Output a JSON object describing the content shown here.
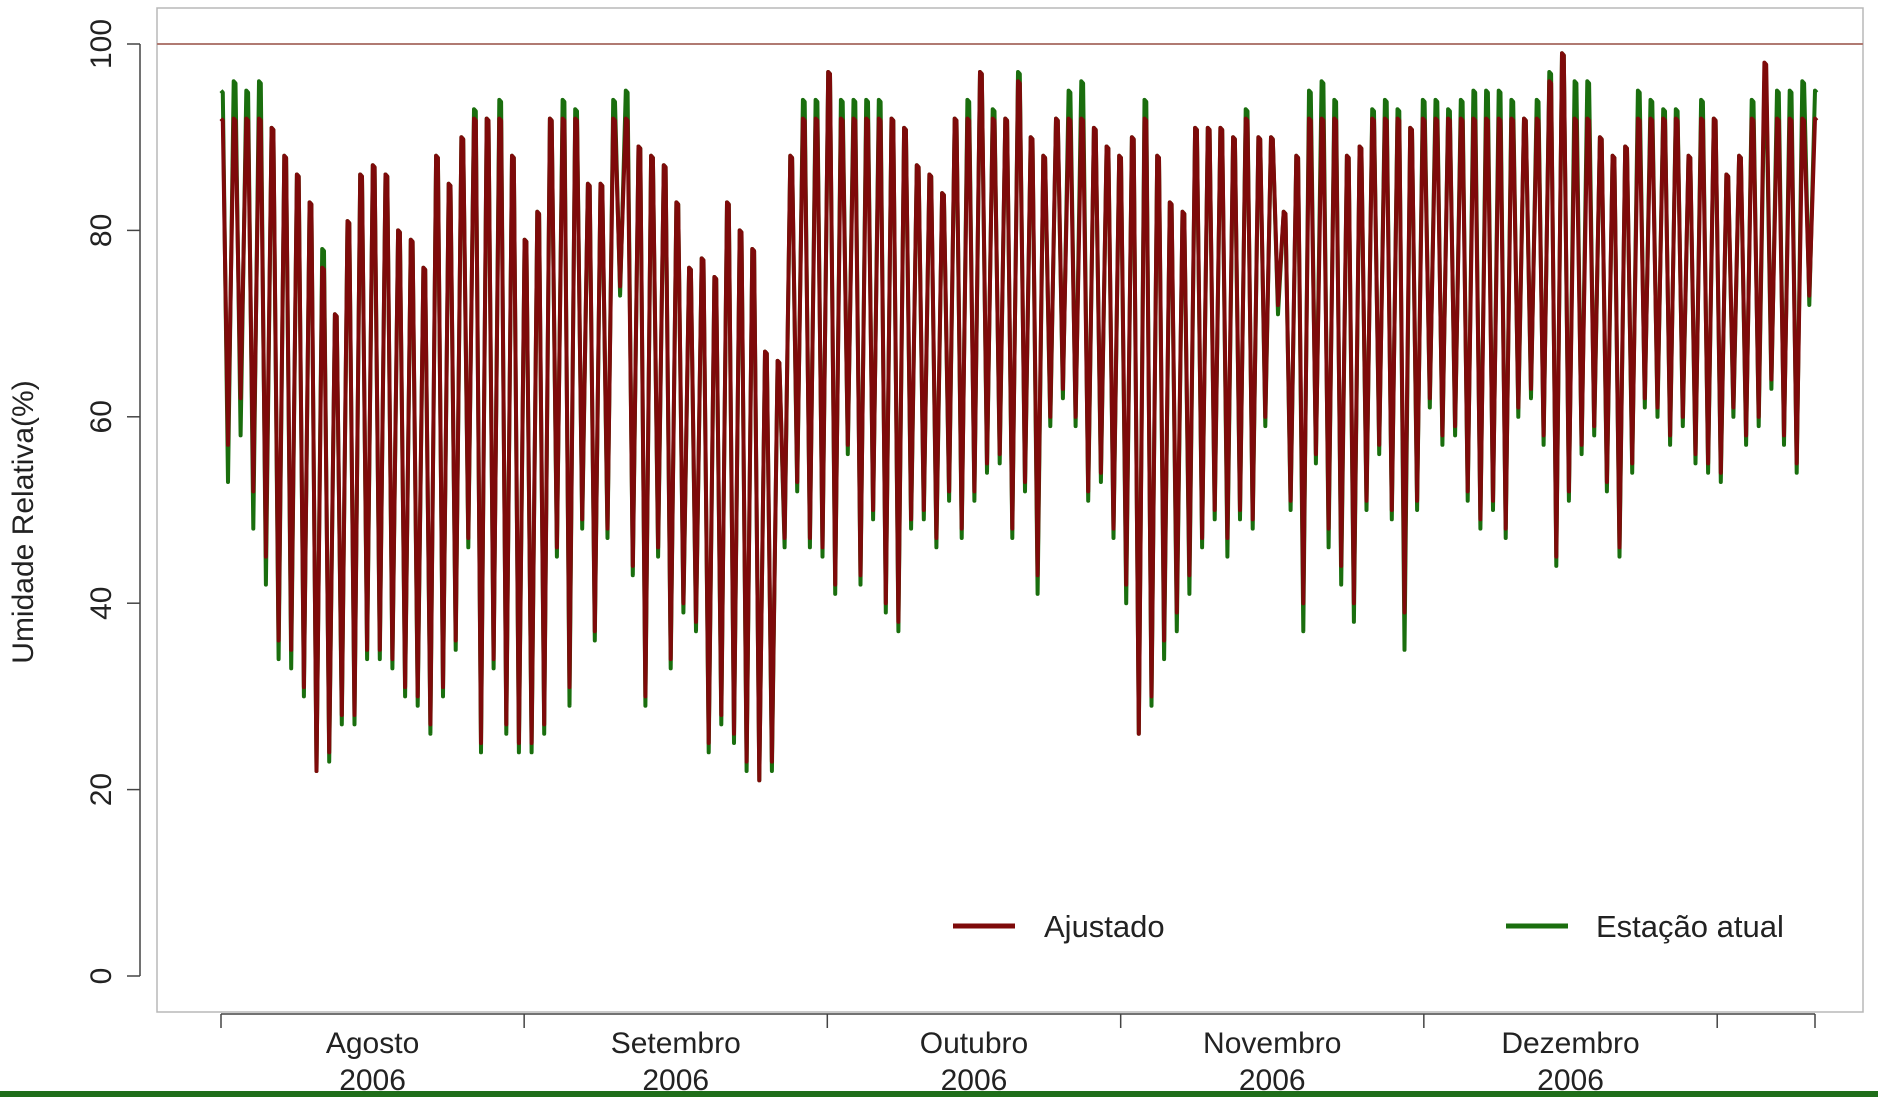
{
  "chart_data": {
    "type": "line",
    "title": "",
    "xlabel": "",
    "ylabel": "Umidade Relativa(%)",
    "ylim": [
      0,
      100
    ],
    "y_ticks": [
      "0",
      "20",
      "40",
      "60",
      "80",
      "100"
    ],
    "reference_line": {
      "y": 100,
      "color": "#b07a72"
    },
    "x_range": [
      "2006-07-21",
      "2006-12-31"
    ],
    "x_tick_boundaries": [
      "2006-07-21",
      "2006-08-21",
      "2006-09-21",
      "2006-10-21",
      "2006-11-21",
      "2006-12-21",
      "2006-12-31"
    ],
    "x_labels": [
      {
        "month": "Agosto",
        "year": "2006",
        "date": "2006-08-05"
      },
      {
        "month": "Setembro",
        "year": "2006",
        "date": "2006-09-05"
      },
      {
        "month": "Outubro",
        "year": "2006",
        "date": "2006-10-05"
      },
      {
        "month": "Novembro",
        "year": "2006",
        "date": "2006-11-05"
      },
      {
        "month": "Dezembro",
        "year": "2006",
        "date": "2006-12-05"
      }
    ],
    "legend": {
      "position": "bottom"
    },
    "series": [
      {
        "name": "Estação atual",
        "color": "#1a6e0e",
        "daily_max": [
          95,
          96,
          95,
          96,
          91,
          88,
          86,
          83,
          78,
          71,
          81,
          86,
          87,
          86,
          80,
          79,
          76,
          88,
          85,
          90,
          93,
          92,
          94,
          88,
          79,
          82,
          92,
          94,
          93,
          85,
          85,
          94,
          95,
          89,
          88,
          87,
          83,
          76,
          77,
          75,
          83,
          80,
          78,
          67,
          66,
          88,
          94,
          94,
          97,
          94,
          94,
          94,
          94,
          92,
          91,
          87,
          86,
          84,
          92,
          94,
          97,
          93,
          92,
          97,
          90,
          88,
          92,
          95,
          96,
          91,
          89,
          88,
          90,
          94,
          88,
          83,
          82,
          91,
          91,
          91,
          90,
          93,
          90,
          90,
          82,
          88,
          95,
          96,
          94,
          88,
          89,
          93,
          94,
          93,
          91,
          94,
          94,
          93,
          94,
          95,
          95,
          95,
          94,
          92,
          94,
          97,
          99,
          96,
          96,
          90,
          88,
          89,
          95,
          94,
          93,
          93,
          88,
          94,
          92,
          86,
          88,
          94,
          96,
          95,
          95,
          96,
          95,
          95,
          94,
          93,
          92,
          90,
          93,
          94,
          93,
          93
        ],
        "daily_min": [
          53,
          58,
          48,
          42,
          34,
          33,
          30,
          22,
          23,
          27,
          27,
          34,
          34,
          33,
          30,
          29,
          26,
          30,
          35,
          46,
          24,
          33,
          26,
          24,
          24,
          26,
          45,
          29,
          48,
          36,
          47,
          73,
          43,
          29,
          45,
          33,
          39,
          37,
          24,
          27,
          25,
          22,
          21,
          22,
          46,
          52,
          46,
          45,
          41,
          56,
          42,
          49,
          39,
          37,
          48,
          49,
          46,
          51,
          47,
          51,
          54,
          55,
          47,
          52,
          41,
          59,
          62,
          59,
          51,
          53,
          47,
          40,
          26,
          29,
          34,
          37,
          41,
          46,
          49,
          45,
          49,
          48,
          59,
          71,
          50,
          37,
          55,
          46,
          42,
          38,
          50,
          56,
          49,
          35,
          50,
          61,
          57,
          58,
          51,
          48,
          50,
          47,
          60,
          62,
          57,
          44,
          51,
          56,
          58,
          52,
          45,
          54,
          61,
          60,
          57,
          59,
          55,
          54,
          53,
          60,
          57,
          59,
          63,
          57,
          54,
          72,
          81
        ]
      },
      {
        "name": "Ajustado",
        "color": "#7e0a0a",
        "daily_max": [
          92,
          92,
          92,
          92,
          91,
          88,
          86,
          83,
          76,
          71,
          81,
          86,
          87,
          86,
          80,
          79,
          76,
          88,
          85,
          90,
          92,
          92,
          92,
          88,
          79,
          82,
          92,
          92,
          92,
          85,
          85,
          92,
          92,
          89,
          88,
          87,
          83,
          76,
          77,
          75,
          83,
          80,
          78,
          67,
          66,
          88,
          92,
          92,
          97,
          92,
          92,
          92,
          92,
          92,
          91,
          87,
          86,
          84,
          92,
          92,
          97,
          92,
          92,
          96,
          90,
          88,
          92,
          92,
          92,
          91,
          89,
          88,
          90,
          92,
          88,
          83,
          82,
          91,
          91,
          91,
          90,
          92,
          90,
          90,
          82,
          88,
          92,
          92,
          92,
          88,
          89,
          92,
          92,
          92,
          91,
          92,
          92,
          92,
          92,
          92,
          92,
          92,
          92,
          92,
          92,
          96,
          99,
          92,
          92,
          90,
          88,
          89,
          92,
          92,
          92,
          92,
          88,
          92,
          92,
          86,
          88,
          92,
          98,
          92,
          92,
          92,
          92,
          92,
          92,
          92,
          92,
          90,
          92,
          92,
          92,
          92
        ],
        "daily_min": [
          57,
          62,
          52,
          45,
          36,
          35,
          31,
          22,
          24,
          28,
          28,
          35,
          35,
          34,
          31,
          30,
          27,
          31,
          36,
          47,
          25,
          34,
          27,
          25,
          25,
          27,
          46,
          31,
          49,
          37,
          48,
          74,
          44,
          30,
          46,
          34,
          40,
          38,
          25,
          28,
          26,
          23,
          21,
          23,
          47,
          53,
          47,
          46,
          42,
          57,
          43,
          50,
          40,
          38,
          49,
          50,
          47,
          52,
          48,
          52,
          55,
          56,
          48,
          53,
          43,
          60,
          63,
          60,
          52,
          54,
          48,
          42,
          26,
          30,
          36,
          39,
          43,
          47,
          50,
          47,
          50,
          49,
          60,
          72,
          51,
          40,
          56,
          48,
          44,
          40,
          51,
          57,
          50,
          39,
          51,
          62,
          58,
          59,
          52,
          49,
          51,
          48,
          61,
          63,
          58,
          45,
          52,
          57,
          59,
          53,
          46,
          55,
          62,
          61,
          58,
          60,
          56,
          55,
          54,
          61,
          58,
          60,
          64,
          58,
          55,
          73,
          82
        ]
      }
    ]
  },
  "colors": {
    "frame": "#b8b8b8",
    "tick_mark": "#444444",
    "bottom_bar": "#1f6e1a"
  }
}
